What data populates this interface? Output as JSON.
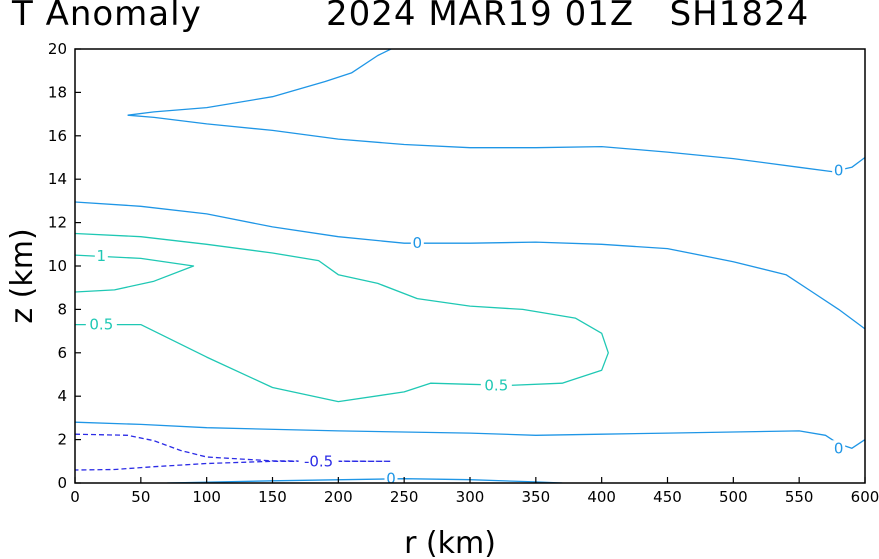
{
  "title_left": "T Anomaly",
  "title_right": "2024 MAR19 01Z   SH1824",
  "chart_data": {
    "type": "contour",
    "title": "T Anomaly",
    "subtitle": "2024 MAR19 01Z   SH1824",
    "xlabel": "r (km)",
    "ylabel": "z (km)",
    "xlim": [
      0,
      600
    ],
    "ylim": [
      0,
      20
    ],
    "x_ticks": [
      0,
      50,
      100,
      150,
      200,
      250,
      300,
      350,
      400,
      450,
      500,
      550,
      600
    ],
    "y_ticks": [
      0,
      2,
      4,
      6,
      8,
      10,
      12,
      14,
      16,
      18,
      20
    ],
    "colors": {
      "zero": "#1f96e6",
      "pos": "#1fc8b4",
      "neg": "#2c2ce6"
    },
    "contours": [
      {
        "level": 0,
        "color_key": "zero",
        "dashed": false,
        "points": [
          [
            40,
            16.95
          ],
          [
            60,
            16.85
          ],
          [
            100,
            16.55
          ],
          [
            150,
            16.25
          ],
          [
            200,
            15.85
          ],
          [
            250,
            15.6
          ],
          [
            300,
            15.45
          ],
          [
            350,
            15.45
          ],
          [
            400,
            15.5
          ],
          [
            450,
            15.25
          ],
          [
            500,
            14.95
          ],
          [
            550,
            14.55
          ],
          [
            575,
            14.35
          ],
          [
            590,
            14.55
          ],
          [
            600,
            15.0
          ]
        ],
        "labels": [
          {
            "text": "0",
            "x": 580,
            "y": 14.4
          }
        ]
      },
      {
        "level": 0,
        "color_key": "zero",
        "dashed": false,
        "points": [
          [
            40,
            16.95
          ],
          [
            60,
            17.1
          ],
          [
            100,
            17.3
          ],
          [
            150,
            17.8
          ],
          [
            190,
            18.5
          ],
          [
            210,
            18.9
          ],
          [
            230,
            19.7
          ],
          [
            240,
            20.0
          ]
        ],
        "labels": []
      },
      {
        "level": 0,
        "color_key": "zero",
        "dashed": false,
        "points": [
          [
            0,
            12.95
          ],
          [
            50,
            12.75
          ],
          [
            100,
            12.4
          ],
          [
            150,
            11.8
          ],
          [
            200,
            11.35
          ],
          [
            250,
            11.05
          ],
          [
            300,
            11.05
          ],
          [
            350,
            11.1
          ],
          [
            400,
            11.0
          ],
          [
            450,
            10.8
          ],
          [
            500,
            10.2
          ],
          [
            540,
            9.6
          ],
          [
            560,
            8.8
          ],
          [
            580,
            8.0
          ],
          [
            600,
            7.1
          ]
        ],
        "labels": [
          {
            "text": "0",
            "x": 260,
            "y": 11.05
          }
        ]
      },
      {
        "level": 0,
        "color_key": "zero",
        "dashed": false,
        "points": [
          [
            0,
            2.8
          ],
          [
            50,
            2.7
          ],
          [
            100,
            2.55
          ],
          [
            200,
            2.4
          ],
          [
            300,
            2.3
          ],
          [
            350,
            2.2
          ],
          [
            400,
            2.25
          ],
          [
            450,
            2.3
          ],
          [
            500,
            2.35
          ],
          [
            550,
            2.4
          ],
          [
            570,
            2.2
          ],
          [
            580,
            1.8
          ],
          [
            590,
            1.6
          ],
          [
            600,
            2.0
          ]
        ],
        "labels": [
          {
            "text": "0",
            "x": 580,
            "y": 1.6
          }
        ]
      },
      {
        "level": 0,
        "color_key": "zero",
        "dashed": false,
        "points": [
          [
            70,
            0.0
          ],
          [
            150,
            0.1
          ],
          [
            250,
            0.2
          ],
          [
            300,
            0.15
          ],
          [
            350,
            0.05
          ],
          [
            370,
            0.0
          ]
        ],
        "labels": [
          {
            "text": "0",
            "x": 240,
            "y": 0.2
          }
        ]
      },
      {
        "level": 0.5,
        "color_key": "pos",
        "dashed": false,
        "points": [
          [
            0,
            11.5
          ],
          [
            50,
            11.35
          ],
          [
            100,
            11.0
          ],
          [
            150,
            10.6
          ],
          [
            185,
            10.25
          ],
          [
            200,
            9.6
          ],
          [
            230,
            9.2
          ],
          [
            260,
            8.5
          ],
          [
            300,
            8.15
          ],
          [
            340,
            8.0
          ],
          [
            380,
            7.6
          ],
          [
            400,
            6.9
          ],
          [
            405,
            6.0
          ],
          [
            400,
            5.2
          ],
          [
            370,
            4.6
          ],
          [
            330,
            4.5
          ],
          [
            300,
            4.55
          ],
          [
            270,
            4.6
          ],
          [
            250,
            4.2
          ],
          [
            200,
            3.75
          ],
          [
            150,
            4.4
          ],
          [
            100,
            5.8
          ],
          [
            50,
            7.3
          ],
          [
            0,
            7.3
          ]
        ],
        "labels": [
          {
            "text": "0.5",
            "x": 20,
            "y": 7.3
          },
          {
            "text": "0.5",
            "x": 320,
            "y": 4.5
          }
        ]
      },
      {
        "level": 1,
        "color_key": "pos",
        "dashed": false,
        "points": [
          [
            0,
            10.5
          ],
          [
            50,
            10.35
          ],
          [
            90,
            10.0
          ],
          [
            60,
            9.3
          ],
          [
            30,
            8.9
          ],
          [
            0,
            8.8
          ]
        ],
        "labels": [
          {
            "text": "1",
            "x": 20,
            "y": 10.45
          }
        ]
      },
      {
        "level": -0.5,
        "color_key": "neg",
        "dashed": true,
        "points": [
          [
            0,
            2.25
          ],
          [
            40,
            2.2
          ],
          [
            60,
            1.95
          ],
          [
            80,
            1.5
          ],
          [
            100,
            1.2
          ],
          [
            150,
            1.02
          ],
          [
            240,
            1.0
          ],
          [
            150,
            1.0
          ],
          [
            100,
            0.9
          ],
          [
            60,
            0.75
          ],
          [
            30,
            0.62
          ],
          [
            0,
            0.6
          ]
        ],
        "labels": [
          {
            "text": "-0.5",
            "x": 185,
            "y": 1.0
          }
        ]
      }
    ]
  }
}
